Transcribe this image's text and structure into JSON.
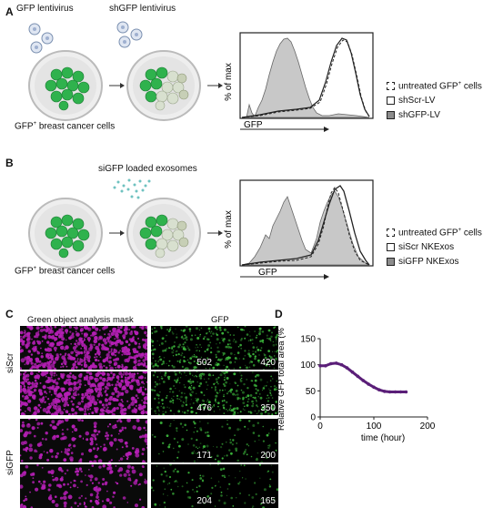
{
  "panels": {
    "A": {
      "letter": "A",
      "virus1_label": "GFP lentivirus",
      "virus2_label": "shGFP lentivirus",
      "cells_label": "GFP",
      "cells_label_sup": "+",
      "cells_label_rest": " breast cancer cells",
      "y_axis": "% of max",
      "x_axis": "GFP",
      "legend": [
        {
          "label": "untreated GFP",
          "sup": "+",
          "rest": " cells",
          "style": "dash"
        },
        {
          "label": "shScr-LV",
          "sup": "",
          "rest": "",
          "style": "open"
        },
        {
          "label": "shGFP-LV",
          "sup": "",
          "rest": "",
          "style": "filled"
        }
      ]
    },
    "B": {
      "letter": "B",
      "exo_label": "siGFP loaded exosomes",
      "cells_label": "GFP",
      "cells_label_sup": "+",
      "cells_label_rest": " breast cancer cells",
      "y_axis": "% of max",
      "x_axis": "GFP",
      "legend": [
        {
          "label": "untreated GFP",
          "sup": "+",
          "rest": " cells",
          "style": "dash"
        },
        {
          "label": "siScr NKExos",
          "sup": "",
          "rest": "",
          "style": "open"
        },
        {
          "label": "siGFP NKExos",
          "sup": "",
          "rest": "",
          "style": "filled"
        }
      ]
    },
    "C": {
      "letter": "C",
      "mask_header": "Green object analysis mask",
      "gfp_header": "GFP",
      "row_label_top": "siScr",
      "row_label_bottom": "siGFP",
      "counts": [
        "502",
        "420",
        "476",
        "350",
        "171",
        "200",
        "204",
        "165"
      ]
    },
    "D": {
      "letter": "D"
    }
  },
  "colors": {
    "magenta": "#b41fb4",
    "gfp_green": "#3fbf3f",
    "cell_green": "#2fb24d",
    "histogram_fill": "#c8c8c8",
    "curve": "#5a1e78"
  },
  "chart_data": {
    "type": "line",
    "title": "",
    "xlabel": "time (hour)",
    "ylabel": "Relative GFP total area (%)",
    "xlim": [
      0,
      200
    ],
    "ylim": [
      0,
      150
    ],
    "xticks": [
      0,
      100,
      200
    ],
    "yticks": [
      0,
      50,
      100,
      150
    ],
    "series": [
      {
        "x": [
          0,
          10,
          20,
          30,
          40,
          50,
          60,
          70,
          80,
          90,
          100,
          110,
          120,
          130,
          140,
          150,
          160
        ],
        "y": [
          98,
          98,
          102,
          103,
          100,
          94,
          86,
          78,
          70,
          63,
          57,
          52,
          49,
          48,
          48,
          48,
          48
        ]
      }
    ]
  }
}
